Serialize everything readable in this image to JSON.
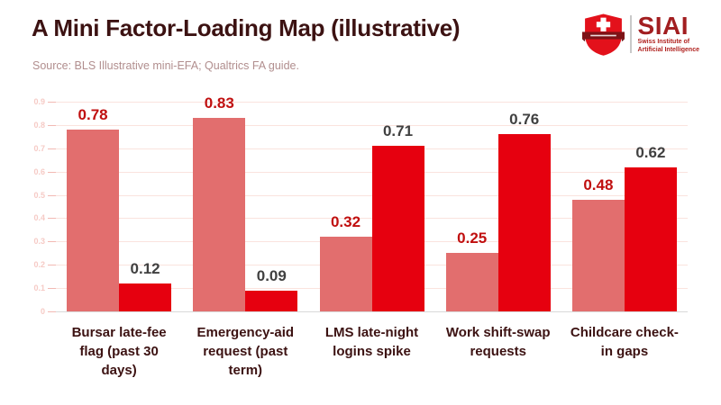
{
  "header": {
    "title": "A Mini Factor-Loading Map (illustrative)",
    "source": "Source: BLS Illustrative mini-EFA; Qualtrics FA guide.",
    "logo": {
      "acronym": "SIAI",
      "name_line1": "Swiss Institute of",
      "name_line2": "Artificial Intelligence"
    }
  },
  "colors": {
    "title_text": "#3C1212",
    "source_text": "#B18E8E",
    "series1_bar": "#E26E6E",
    "series2_bar": "#E6000F",
    "series1_value_label": "#C00F0F",
    "series2_value_label": "#404040",
    "gridline": "#FAE3DE",
    "baseline": "#D9D9D9",
    "y_tick_label": "#F6CBC6",
    "logo_red": "#E3111B",
    "logo_banner": "#7D1216"
  },
  "chart_data": {
    "type": "bar",
    "title": "A Mini Factor-Loading Map (illustrative)",
    "categories": [
      "Bursar late-fee flag (past 30 days)",
      "Emergency-aid request (past term)",
      "LMS late-night logins spike",
      "Work shift-swap requests",
      "Childcare check-in gaps"
    ],
    "series": [
      {
        "name": "series_1",
        "values": [
          0.78,
          0.83,
          0.32,
          0.25,
          0.48
        ],
        "bar_color": "#E26E6E",
        "label_color": "#C00F0F"
      },
      {
        "name": "series_2",
        "values": [
          0.12,
          0.09,
          0.71,
          0.76,
          0.62
        ],
        "bar_color": "#E6000F",
        "label_color": "#404040"
      }
    ],
    "value_labels": [
      [
        "0.78",
        "0.83",
        "0.32",
        "0.25",
        "0.48"
      ],
      [
        "0.12",
        "0.09",
        "0.71",
        "0.76",
        "0.62"
      ]
    ],
    "xlabel": "",
    "ylabel": "",
    "ylim": [
      0,
      0.9
    ],
    "ytick_step": 0.1,
    "ytick_labels": [
      "0",
      "0.1",
      "0.2",
      "0.3",
      "0.4",
      "0.5",
      "0.6",
      "0.7",
      "0.8",
      "0.9"
    ],
    "grid": true,
    "legend_position": "none"
  }
}
